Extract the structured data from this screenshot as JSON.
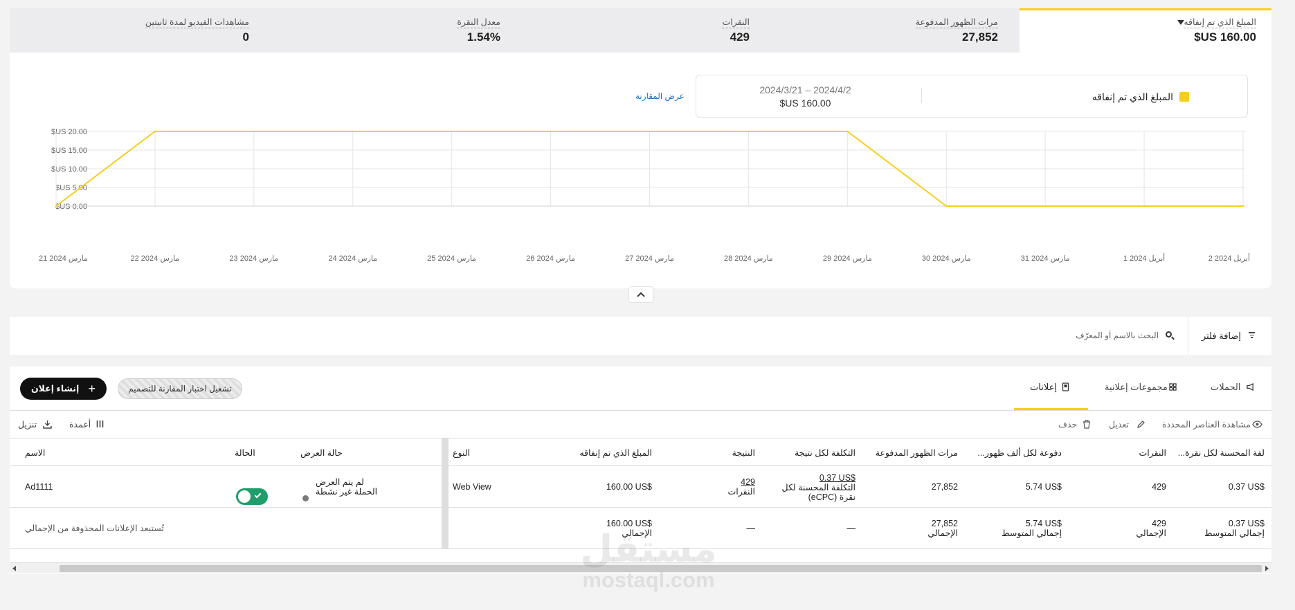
{
  "metrics": {
    "spent": {
      "label": "المبلغ الذي تم إنفاقه",
      "value": "$US 160.00"
    },
    "impressions": {
      "label": "مرات الظهور المدفوعة",
      "value": "27,852"
    },
    "clicks": {
      "label": "النقرات",
      "value": "429"
    },
    "ctr": {
      "label": "معدل النقرة",
      "value": "1.54%"
    },
    "video": {
      "label": "مشاهدات الفيديو لمدة ثانيتين",
      "value": "0"
    }
  },
  "legend": {
    "name": "المبلغ الذي تم إنفاقه",
    "range": "2024/3/21 – 2024/4/2",
    "total": "$US 160.00",
    "compare_link": "عرض المقارنة"
  },
  "chart_data": {
    "type": "line",
    "x": [
      "21 مارس 2024",
      "22 مارس 2024",
      "23 مارس 2024",
      "24 مارس 2024",
      "25 مارس 2024",
      "26 مارس 2024",
      "27 مارس 2024",
      "28 مارس 2024",
      "29 مارس 2024",
      "30 مارس 2024",
      "31 مارس 2024",
      "1 أبريل 2024",
      "2 أبريل 2024"
    ],
    "series": [
      {
        "name": "المبلغ الذي تم إنفاقه",
        "values": [
          0,
          20,
          20,
          20,
          20,
          20,
          20,
          20,
          20,
          0,
          0,
          0,
          0
        ],
        "color": "#f5cf1e"
      }
    ],
    "y_ticks": [
      0,
      5,
      10,
      15,
      20
    ],
    "y_tick_labels": [
      "$US 0.00",
      "$US 5.00",
      "$US 10.00",
      "$US 15.00",
      "$US 20.00"
    ],
    "ylim": [
      0,
      20
    ],
    "grid": true
  },
  "filter": {
    "add_label": "إضافة فلتر",
    "search_placeholder": "البحث بالاسم أو المعرّف"
  },
  "tabs": {
    "campaigns": "الحملات",
    "adsets": "مجموعات إعلانية",
    "ads": "إعلانات"
  },
  "buttons": {
    "ab_test": "تشغيل اختبار المقارنة للتصميم",
    "create_ad": "إنشاء إعلان"
  },
  "toolbar": {
    "view_selected": "مشاهدة العناصر المحددة",
    "edit": "تعديل",
    "delete": "حذف",
    "columns": "أعمدة",
    "download": "تنزيل"
  },
  "table": {
    "headers": {
      "ecpc": "...لفة المحسنة لكل نقرة",
      "clicks": "النقرات",
      "cpm": "...دفوعة لكل ألف ظهور",
      "impressions": "مرات الظهور المدفوعة",
      "cpr": "التكلفة لكل نتيجة",
      "result": "النتيجة",
      "spent": "المبلغ الذي تم إنفاقه",
      "type": "النوع",
      "delivery": "حالة العرض",
      "status": "الحالة",
      "name": "الاسم"
    },
    "row": {
      "ecpc": "0.37 US$",
      "clicks": "429",
      "cpm": "5.74 US$",
      "impressions": "27,852",
      "cpr_value": "0.37 US$",
      "cpr_sub1": "التكلفة المحسنة لكل",
      "cpr_sub2": "(eCPC) نقرة",
      "result_value": "429",
      "result_sub": "النقرات",
      "spent": "160.00 US$",
      "type": "Web View",
      "delivery_line1": "لم يتم العرض",
      "delivery_line2": "الحملة غير نشطة",
      "status_on": true,
      "name": "Ad1111"
    },
    "totals": {
      "ecpc": "0.37 US$",
      "ecpc_sub": "إجمالي المتوسط",
      "clicks": "429",
      "clicks_sub": "الإجمالي",
      "cpm": "5.74 US$",
      "cpm_sub": "إجمالي المتوسط",
      "impressions": "27,852",
      "impressions_sub": "الإجمالي",
      "cpr": "—",
      "result": "—",
      "spent": "160.00 US$",
      "spent_sub": "الإجمالي",
      "note": "تُستبعد الإعلانات المحذوفة من الإجمالي"
    }
  },
  "watermark": {
    "arabic": "مستقل",
    "latin": "mostaql.com"
  }
}
